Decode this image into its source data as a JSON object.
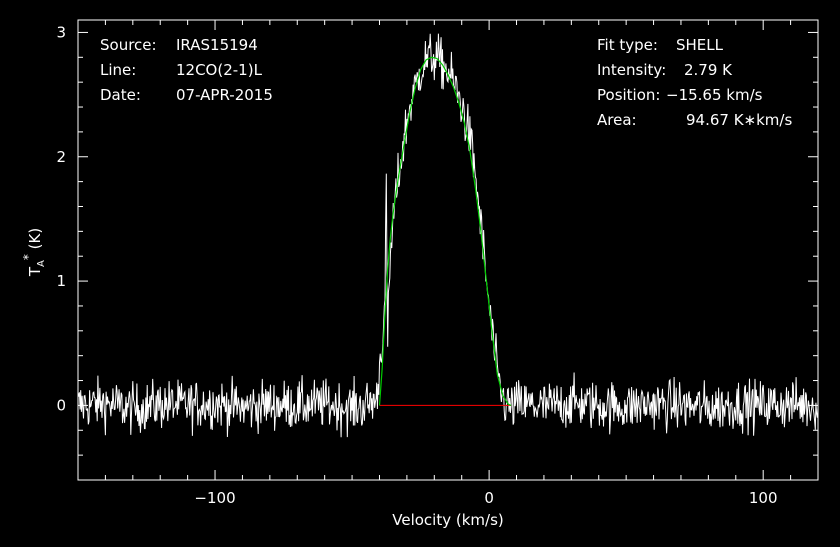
{
  "info_left": {
    "source_label": "Source:",
    "source_value": "IRAS15194",
    "line_label": "Line:",
    "line_value": "12CO(2-1)L",
    "date_label": "Date:",
    "date_value": "07-APR-2015"
  },
  "info_right": {
    "fit_label": "Fit type:",
    "fit_value": "SHELL",
    "intensity_label": "Intensity:",
    "intensity_value": "2.79 K",
    "position_label": "Position:",
    "position_value": "−15.65 km/s",
    "area_label": "Area:",
    "area_value": "94.67 K∗km/s"
  },
  "chart_data": {
    "type": "line",
    "xlabel": "Velocity (km/s)",
    "ylabel": "T_A* (K)",
    "xlim": [
      -150,
      120
    ],
    "ylim": [
      -0.6,
      3.1
    ],
    "x_ticks": [
      -100,
      0,
      100
    ],
    "x_tick_labels": [
      "−100",
      "0",
      "100"
    ],
    "y_ticks": [
      0,
      1,
      2,
      3
    ],
    "y_tick_labels": [
      "0",
      "1",
      "2",
      "3"
    ],
    "grid": false,
    "colors": {
      "spectrum": "#ffffff",
      "fit": "#00cc00",
      "baseline": "#ff0000",
      "frame": "#ffffff",
      "background": "#000000"
    },
    "series": [
      {
        "role": "spectrum",
        "x": [
          -150,
          -140,
          -130,
          -120,
          -110,
          -100,
          -90,
          -80,
          -70,
          -60,
          -50,
          -45,
          -41,
          -38,
          -37.5,
          -37,
          -36.5,
          -36,
          -35,
          -33,
          -31,
          -29,
          -27,
          -25,
          -23,
          -21,
          -19,
          -17,
          -15,
          -13,
          -11,
          -9,
          -7,
          -5,
          -3,
          -1,
          1,
          3,
          5,
          7,
          8,
          10,
          15,
          20,
          30,
          40,
          50,
          60,
          70,
          80,
          90,
          100,
          110,
          120
        ],
        "y": [
          0,
          0.02,
          -0.03,
          0.01,
          0,
          0.02,
          -0.02,
          0.01,
          0,
          0.01,
          -0.02,
          0,
          0.05,
          0.8,
          1.75,
          0.5,
          0.9,
          1.2,
          1.5,
          1.85,
          2.15,
          2.4,
          2.55,
          2.7,
          2.78,
          2.8,
          2.79,
          2.74,
          2.68,
          2.6,
          2.48,
          2.33,
          2.15,
          1.85,
          1.45,
          1.0,
          0.6,
          0.25,
          0.05,
          0,
          -0.02,
          0.01,
          0,
          -0.01,
          0.02,
          0,
          -0.01,
          0.01,
          0,
          -0.02,
          0.01,
          0,
          0.01,
          0
        ]
      },
      {
        "role": "fit",
        "x": [
          -40,
          -39,
          -38,
          -37,
          -36,
          -35,
          -33,
          -31,
          -29,
          -27,
          -25,
          -23,
          -21,
          -19,
          -17,
          -15,
          -13,
          -11,
          -9,
          -7,
          -5,
          -3,
          -1,
          1,
          3,
          5,
          7,
          8
        ],
        "y": [
          0,
          0.3,
          0.75,
          1.1,
          1.35,
          1.55,
          1.85,
          2.1,
          2.35,
          2.55,
          2.7,
          2.78,
          2.8,
          2.79,
          2.74,
          2.66,
          2.56,
          2.43,
          2.27,
          2.05,
          1.75,
          1.4,
          1.0,
          0.6,
          0.25,
          0.08,
          0.01,
          0
        ]
      },
      {
        "role": "baseline",
        "x": [
          -40,
          8
        ],
        "y": [
          0,
          0
        ]
      }
    ],
    "noise_rms": 0.1
  }
}
